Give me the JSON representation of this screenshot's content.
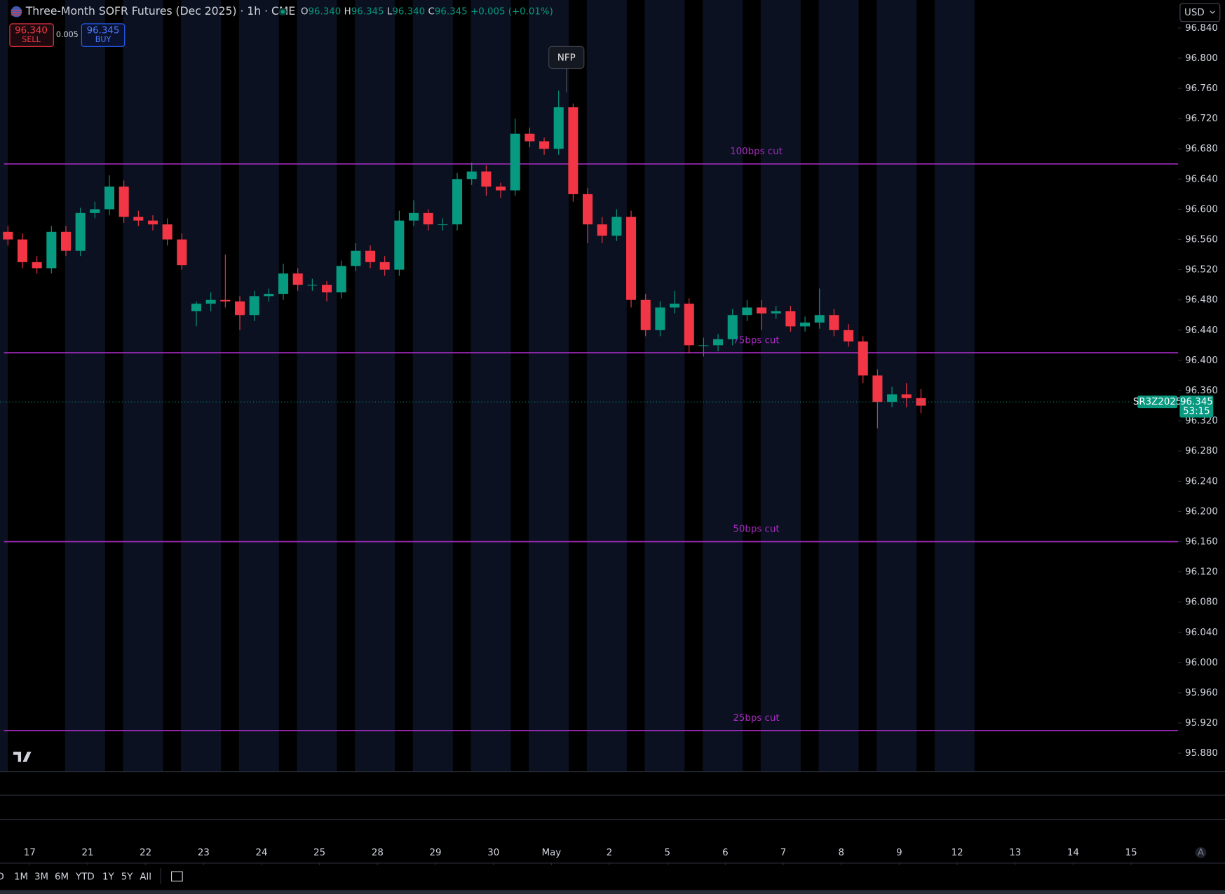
{
  "header": {
    "title": "Three-Month SOFR Futures (Dec 2025) · 1h · CME",
    "ohlc": [
      {
        "key": "O",
        "value": "96.340"
      },
      {
        "key": "H",
        "value": "96.345"
      },
      {
        "key": "L",
        "value": "96.340"
      },
      {
        "key": "C",
        "value": "96.345"
      }
    ],
    "change": "+0.005 (+0.01%)"
  },
  "trade": {
    "sell_price": "96.340",
    "sell": "SELL",
    "spread": "0.005",
    "buy_price": "96.345",
    "buy": "BUY"
  },
  "currency": "USD",
  "toolbar": {
    "ranges": [
      "D",
      "1M",
      "3M",
      "6M",
      "YTD",
      "1Y",
      "5Y",
      "All"
    ]
  },
  "chart_data": {
    "type": "candlestick",
    "up_color": "#089981",
    "down_color": "#f23645",
    "x": [
      -0.375,
      -0.125,
      0.125,
      0.375,
      0.625,
      0.875,
      1.125,
      1.375,
      1.625,
      1.875,
      2.125,
      2.375,
      2.625,
      2.875,
      3.125,
      3.375,
      3.625,
      3.875,
      4.125,
      4.375,
      4.625,
      4.875,
      5.125,
      5.375,
      5.625,
      5.875,
      6.125,
      6.375,
      6.625,
      6.875,
      7.125,
      7.375,
      7.625,
      7.875,
      8.125,
      8.375,
      8.625,
      8.875,
      9.125,
      9.375,
      9.625,
      9.875,
      10.125,
      10.375,
      10.625,
      10.875,
      11.125,
      11.375,
      11.625,
      11.875,
      12.125,
      12.375,
      12.625,
      12.875,
      13.125,
      13.375,
      13.625,
      13.875,
      14.125,
      14.375,
      14.625,
      14.875,
      15.125,
      15.375
    ],
    "series": [
      {
        "name": "SR3Z2025",
        "open": [
          96.57,
          96.56,
          96.53,
          96.522,
          96.57,
          96.545,
          96.595,
          96.6,
          96.63,
          96.59,
          96.585,
          96.58,
          96.56,
          96.465,
          96.475,
          96.48,
          96.478,
          96.46,
          96.485,
          96.488,
          96.515,
          96.5,
          96.5,
          96.49,
          96.525,
          96.545,
          96.53,
          96.52,
          96.585,
          96.595,
          96.58,
          96.58,
          96.64,
          96.65,
          96.63,
          96.625,
          96.7,
          96.69,
          96.68,
          96.735,
          96.62,
          96.58,
          96.565,
          96.59,
          96.48,
          96.44,
          96.47,
          96.475,
          96.42,
          96.42,
          96.428,
          96.46,
          96.47,
          96.462,
          96.465,
          96.445,
          96.45,
          96.46,
          96.44,
          96.425,
          96.38,
          96.345,
          96.355,
          96.35
        ],
        "high": [
          96.578,
          96.568,
          96.538,
          96.578,
          96.578,
          96.602,
          96.61,
          96.645,
          96.638,
          96.598,
          96.592,
          96.588,
          96.568,
          96.478,
          96.49,
          96.54,
          96.485,
          96.492,
          96.495,
          96.528,
          96.522,
          96.508,
          96.505,
          96.532,
          96.555,
          96.552,
          96.538,
          96.598,
          96.612,
          96.6,
          96.588,
          96.648,
          96.662,
          96.658,
          96.635,
          96.72,
          96.708,
          96.695,
          96.757,
          96.74,
          96.628,
          96.59,
          96.6,
          96.598,
          96.488,
          96.478,
          96.492,
          96.482,
          96.43,
          96.435,
          96.468,
          96.48,
          96.48,
          96.472,
          96.472,
          96.458,
          96.495,
          96.468,
          96.448,
          96.432,
          96.388,
          96.365,
          96.37,
          96.362
        ],
        "low": [
          96.552,
          96.522,
          96.515,
          96.515,
          96.538,
          96.538,
          96.588,
          96.592,
          96.582,
          96.578,
          96.572,
          96.552,
          96.52,
          96.445,
          96.465,
          96.47,
          96.44,
          96.452,
          96.478,
          96.48,
          96.492,
          96.492,
          96.478,
          96.482,
          96.518,
          96.522,
          96.512,
          96.512,
          96.578,
          96.572,
          96.572,
          96.572,
          96.632,
          96.618,
          96.615,
          96.618,
          96.682,
          96.672,
          96.672,
          96.61,
          96.555,
          96.555,
          96.558,
          96.47,
          96.432,
          96.432,
          96.462,
          96.41,
          96.405,
          96.412,
          96.42,
          96.452,
          96.44,
          96.455,
          96.438,
          96.438,
          96.442,
          96.432,
          96.418,
          96.37,
          96.31,
          96.338,
          96.338,
          96.33
        ],
        "close": [
          96.56,
          96.53,
          96.522,
          96.57,
          96.545,
          96.595,
          96.6,
          96.63,
          96.59,
          96.585,
          96.58,
          96.56,
          96.526,
          96.475,
          96.48,
          96.478,
          96.46,
          96.485,
          96.488,
          96.515,
          96.5,
          96.5,
          96.49,
          96.525,
          96.545,
          96.53,
          96.52,
          96.585,
          96.595,
          96.58,
          96.58,
          96.64,
          96.65,
          96.63,
          96.625,
          96.7,
          96.69,
          96.68,
          96.735,
          96.62,
          96.58,
          96.565,
          96.59,
          96.48,
          96.44,
          96.47,
          96.475,
          96.42,
          96.42,
          96.428,
          96.46,
          96.47,
          96.462,
          96.465,
          96.445,
          96.45,
          96.46,
          96.44,
          96.425,
          96.38,
          96.345,
          96.355,
          96.35,
          96.34
        ]
      }
    ],
    "xlim": [
      -0.512,
      19.811
    ],
    "xticks": [
      {
        "value": 0,
        "label": "17"
      },
      {
        "value": 1,
        "label": "21"
      },
      {
        "value": 2,
        "label": "22"
      },
      {
        "value": 3,
        "label": "23"
      },
      {
        "value": 4,
        "label": "24"
      },
      {
        "value": 5,
        "label": "25"
      },
      {
        "value": 6,
        "label": "28"
      },
      {
        "value": 7,
        "label": "29"
      },
      {
        "value": 8,
        "label": "30"
      },
      {
        "value": 9,
        "label": "May"
      },
      {
        "value": 10,
        "label": "2"
      },
      {
        "value": 11,
        "label": "5"
      },
      {
        "value": 12,
        "label": "6"
      },
      {
        "value": 13,
        "label": "7"
      },
      {
        "value": 14,
        "label": "8"
      },
      {
        "value": 15,
        "label": "9"
      },
      {
        "value": 16,
        "label": "12"
      },
      {
        "value": 17,
        "label": "13"
      },
      {
        "value": 18,
        "label": "14"
      },
      {
        "value": 19,
        "label": "15"
      }
    ],
    "ylim": [
      95.856,
      96.877
    ],
    "yticks": [
      {
        "value": 96.84,
        "label": "96.840"
      },
      {
        "value": 96.8,
        "label": "96.800"
      },
      {
        "value": 96.76,
        "label": "96.760"
      },
      {
        "value": 96.72,
        "label": "96.720"
      },
      {
        "value": 96.68,
        "label": "96.680"
      },
      {
        "value": 96.64,
        "label": "96.640"
      },
      {
        "value": 96.6,
        "label": "96.600"
      },
      {
        "value": 96.56,
        "label": "96.560"
      },
      {
        "value": 96.52,
        "label": "96.520"
      },
      {
        "value": 96.48,
        "label": "96.480"
      },
      {
        "value": 96.44,
        "label": "96.440"
      },
      {
        "value": 96.4,
        "label": "96.400"
      },
      {
        "value": 96.36,
        "label": "96.360"
      },
      {
        "value": 96.32,
        "label": "96.320"
      },
      {
        "value": 96.28,
        "label": "96.280"
      },
      {
        "value": 96.24,
        "label": "96.240"
      },
      {
        "value": 96.2,
        "label": "96.200"
      },
      {
        "value": 96.16,
        "label": "96.160"
      },
      {
        "value": 96.12,
        "label": "96.120"
      },
      {
        "value": 96.08,
        "label": "96.080"
      },
      {
        "value": 96.04,
        "label": "96.040"
      },
      {
        "value": 96,
        "label": "96.000"
      },
      {
        "value": 95.96,
        "label": "95.960"
      },
      {
        "value": 95.92,
        "label": "95.920"
      },
      {
        "value": 95.88,
        "label": "95.880"
      }
    ],
    "level_color": "#a42cc0",
    "levels": [
      {
        "label": "100bps cut",
        "value": 96.66
      },
      {
        "label": "75bps cut",
        "value": 96.41
      },
      {
        "label": "50bps cut",
        "value": 96.16
      },
      {
        "label": "25bps cut",
        "value": 95.91
      }
    ],
    "annotation": "NFP",
    "last_price": 96.345,
    "countdown": "53:15"
  }
}
